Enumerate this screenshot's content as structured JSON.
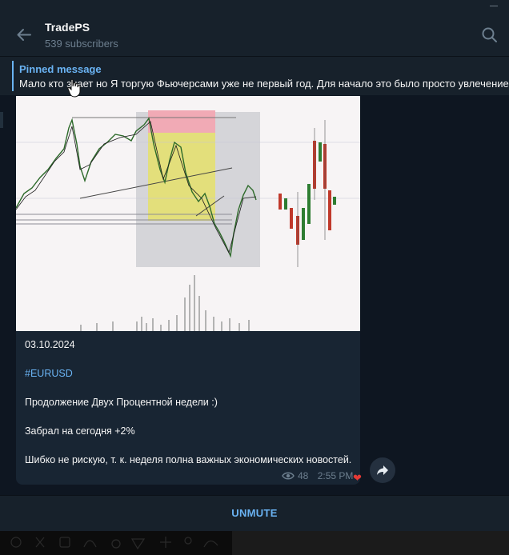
{
  "channel": {
    "title": "TradePS",
    "subscribers": "539 subscribers"
  },
  "pinned": {
    "label": "Pinned message",
    "text": "Мало кто знает но Я торгую Фьючерсами уже не первый год. Для начало это было просто увлечение"
  },
  "message": {
    "date": "03.10.2024",
    "hashtag": "#EURUSD",
    "line1": "Продолжение Двух Процентной недели :)",
    "line2": "Забрал на сегодня +2%",
    "line3": "Шибко не рискую, т. к. неделя полна важных экономических новостей.",
    "views": "48",
    "time": "2:55 PM",
    "reaction": "❤"
  },
  "footer": {
    "unmute_label": "UNMUTE"
  },
  "colors": {
    "accent": "#6ab3f3",
    "header_bg": "#17212b",
    "bubble_bg": "#182533",
    "chat_bg": "#0e1621"
  },
  "icons": [
    "back-arrow-icon",
    "search-icon",
    "eye-icon",
    "forward-icon",
    "heart-icon"
  ]
}
